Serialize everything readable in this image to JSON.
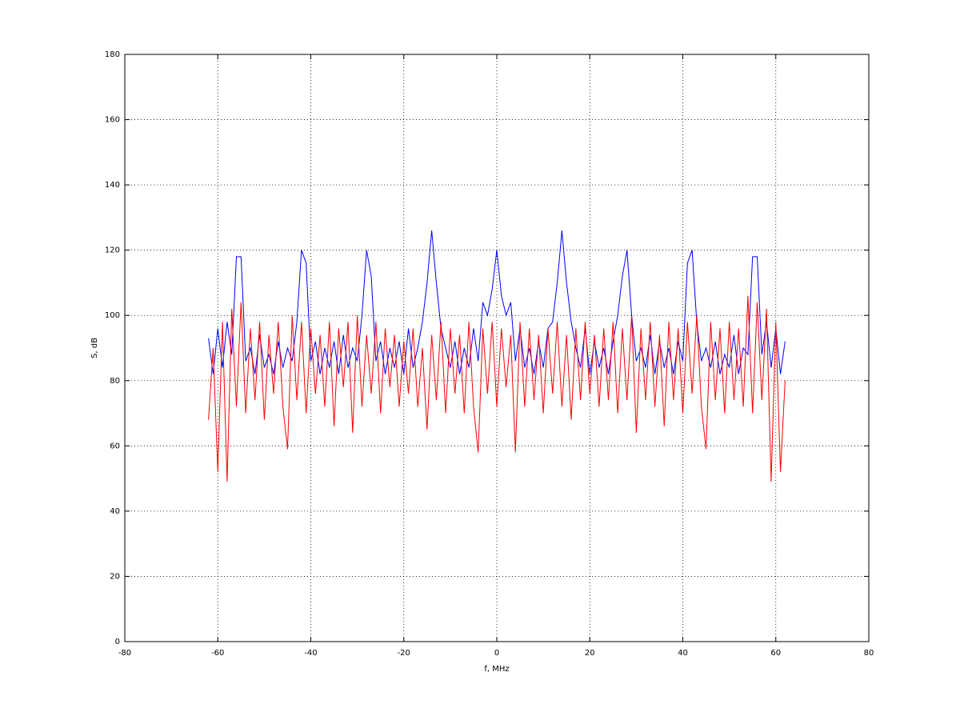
{
  "chart_data": {
    "type": "line",
    "xlabel": "f, MHz",
    "ylabel": "S, dB",
    "x": [
      -62,
      -61,
      -60,
      -59,
      -58,
      -57,
      -56,
      -55,
      -54,
      -53,
      -52,
      -51,
      -50,
      -49,
      -48,
      -47,
      -46,
      -45,
      -44,
      -43,
      -42,
      -41,
      -40,
      -39,
      -38,
      -37,
      -36,
      -35,
      -34,
      -33,
      -32,
      -31,
      -30,
      -29,
      -28,
      -27,
      -26,
      -25,
      -24,
      -23,
      -22,
      -21,
      -20,
      -19,
      -18,
      -17,
      -16,
      -15,
      -14,
      -13,
      -12,
      -11,
      -10,
      -9,
      -8,
      -7,
      -6,
      -5,
      -4,
      -3,
      -2,
      -1,
      0,
      1,
      2,
      3,
      4,
      5,
      6,
      7,
      8,
      9,
      10,
      11,
      12,
      13,
      14,
      15,
      16,
      17,
      18,
      19,
      20,
      21,
      22,
      23,
      24,
      25,
      26,
      27,
      28,
      29,
      30,
      31,
      32,
      33,
      34,
      35,
      36,
      37,
      38,
      39,
      40,
      41,
      42,
      43,
      44,
      45,
      46,
      47,
      48,
      49,
      50,
      51,
      52,
      53,
      54,
      55,
      56,
      57,
      58,
      59,
      60,
      61,
      62
    ],
    "series": [
      {
        "color": "#0000ff",
        "values": [
          93,
          82,
          96,
          84,
          98,
          88,
          118,
          118,
          86,
          90,
          82,
          94,
          84,
          88,
          82,
          92,
          84,
          90,
          86,
          98,
          120,
          116,
          86,
          92,
          82,
          90,
          84,
          92,
          82,
          94,
          84,
          90,
          86,
          100,
          120,
          112,
          86,
          92,
          82,
          90,
          84,
          92,
          82,
          96,
          84,
          90,
          98,
          110,
          126,
          110,
          96,
          90,
          84,
          92,
          82,
          90,
          84,
          96,
          86,
          104,
          100,
          108,
          120,
          106,
          100,
          104,
          86,
          96,
          84,
          90,
          82,
          92,
          84,
          96,
          98,
          110,
          126,
          110,
          98,
          90,
          84,
          96,
          82,
          92,
          84,
          90,
          82,
          92,
          100,
          112,
          120,
          100,
          86,
          90,
          84,
          94,
          82,
          92,
          84,
          90,
          82,
          92,
          86,
          116,
          120,
          98,
          86,
          90,
          84,
          92,
          82,
          88,
          84,
          94,
          82,
          90,
          88,
          118,
          118,
          88,
          98,
          84,
          96,
          82,
          92
        ]
      },
      {
        "color": "#ff0000",
        "values": [
          68,
          90,
          52,
          98,
          49,
          102,
          72,
          104,
          70,
          96,
          74,
          98,
          68,
          94,
          76,
          98,
          72,
          59,
          100,
          74,
          98,
          70,
          96,
          76,
          94,
          72,
          98,
          66,
          96,
          78,
          98,
          64,
          100,
          72,
          94,
          76,
          98,
          70,
          96,
          78,
          94,
          72,
          92,
          76,
          96,
          72,
          90,
          65,
          94,
          74,
          98,
          70,
          96,
          76,
          94,
          70,
          98,
          72,
          58,
          96,
          76,
          98,
          72,
          96,
          78,
          94,
          58,
          98,
          72,
          96,
          74,
          94,
          70,
          96,
          76,
          98,
          72,
          94,
          68,
          96,
          74,
          98,
          76,
          94,
          72,
          96,
          74,
          98,
          70,
          96,
          74,
          100,
          64,
          96,
          74,
          98,
          72,
          94,
          66,
          98,
          74,
          96,
          70,
          98,
          76,
          100,
          72,
          59,
          98,
          74,
          96,
          70,
          98,
          74,
          96,
          72,
          106,
          70,
          104,
          74,
          102,
          49,
          98,
          52,
          80
        ]
      }
    ],
    "xlim": [
      -80,
      80
    ],
    "xticks": [
      -80,
      -60,
      -40,
      -20,
      0,
      20,
      40,
      60,
      80
    ],
    "ylim": [
      0,
      180
    ],
    "yticks": [
      0,
      20,
      40,
      60,
      80,
      100,
      120,
      140,
      160,
      180
    ],
    "grid": true
  }
}
